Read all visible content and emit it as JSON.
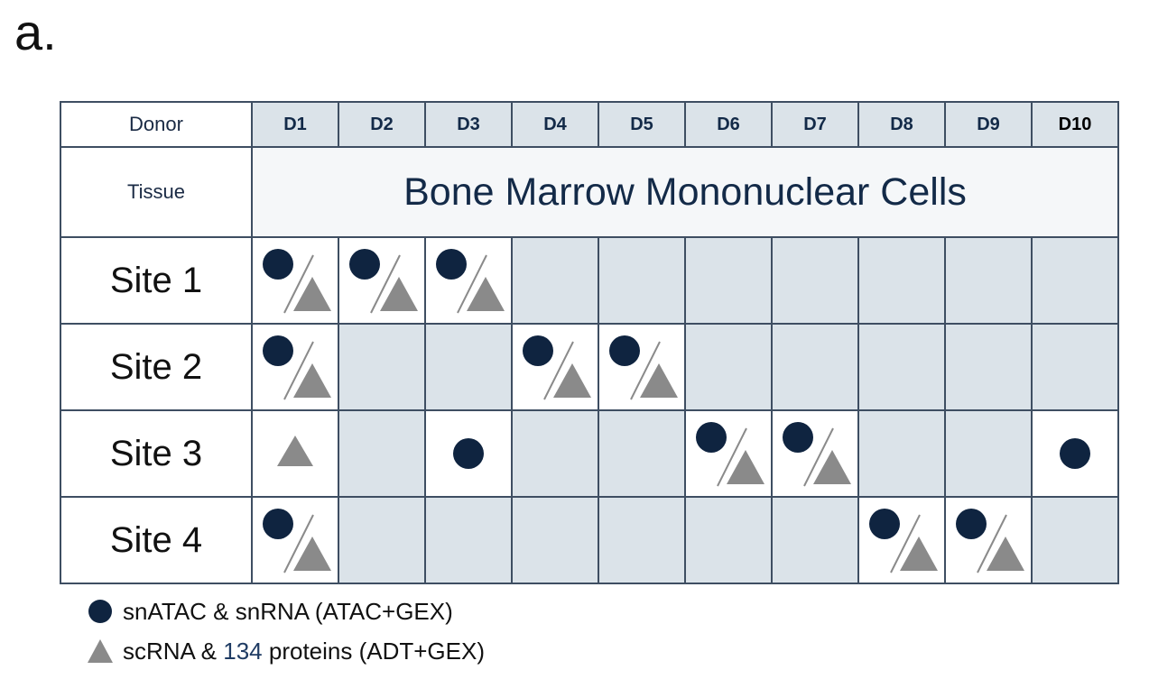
{
  "panel_label": "a.",
  "header": {
    "donor_label": "Donor",
    "donors": [
      "D1",
      "D2",
      "D3",
      "D4",
      "D5",
      "D6",
      "D7",
      "D8",
      "D9",
      "D10"
    ],
    "tissue_label": "Tissue",
    "tissue_value": "Bone Marrow Mononuclear Cells"
  },
  "sites": [
    {
      "label": "Site 1",
      "cells": [
        "both",
        "both",
        "both",
        "",
        "",
        "",
        "",
        "",
        "",
        ""
      ]
    },
    {
      "label": "Site 2",
      "cells": [
        "both",
        "",
        "",
        "both",
        "both",
        "",
        "",
        "",
        "",
        ""
      ]
    },
    {
      "label": "Site 3",
      "cells": [
        "triangle",
        "",
        "circle",
        "",
        "",
        "both",
        "both",
        "",
        "",
        "circle"
      ]
    },
    {
      "label": "Site 4",
      "cells": [
        "both",
        "",
        "",
        "",
        "",
        "",
        "",
        "both",
        "both",
        ""
      ]
    }
  ],
  "legend": {
    "circle_text": "snATAC & snRNA (ATAC+GEX)",
    "triangle_pre": "scRNA & ",
    "triangle_num": "134",
    "triangle_post": " proteins (ADT+GEX)"
  },
  "colors": {
    "circle": "#0f2440",
    "triangle": "#8a8a8a",
    "empty_cell": "#dbe3e9",
    "border": "#3e4e62"
  }
}
